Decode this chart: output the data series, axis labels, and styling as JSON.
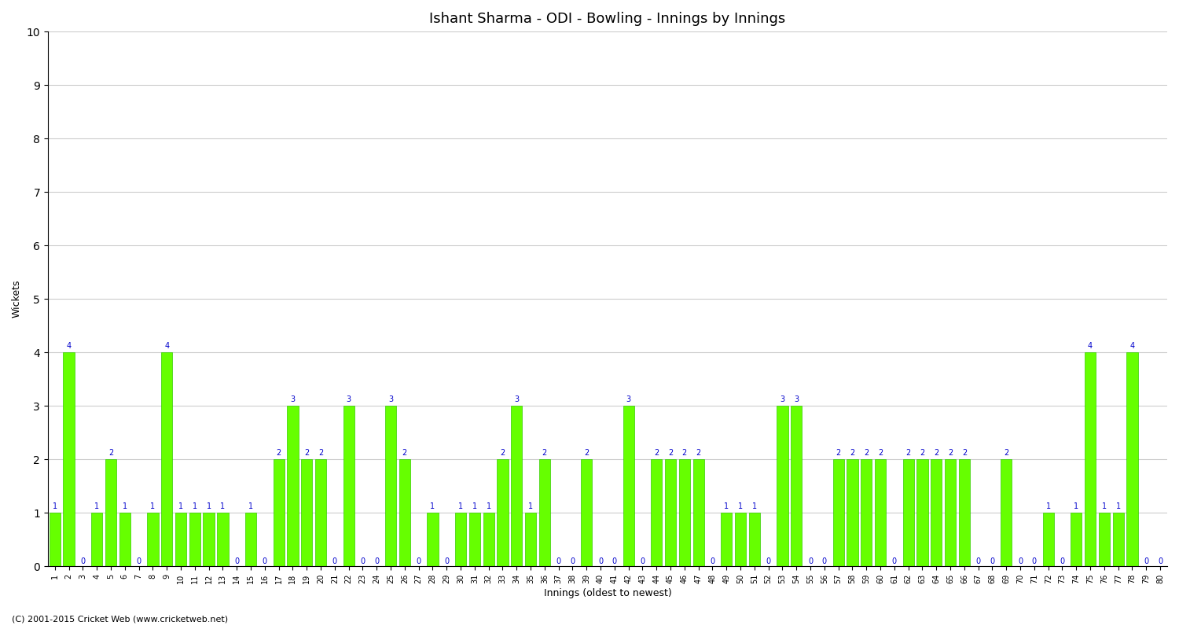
{
  "title": "Ishant Sharma - ODI - Bowling - Innings by Innings",
  "xlabel": "Innings (oldest to newest)",
  "ylabel": "Wickets",
  "bar_color": "#66ff00",
  "bar_edge_color": "#33cc00",
  "label_color": "#0000cc",
  "background_color": "#ffffff",
  "grid_color": "#cccccc",
  "ylim": [
    0,
    10
  ],
  "yticks": [
    0,
    1,
    2,
    3,
    4,
    5,
    6,
    7,
    8,
    9,
    10
  ],
  "footnote": "(C) 2001-2015 Cricket Web (www.cricketweb.net)",
  "wickets": [
    1,
    4,
    0,
    1,
    2,
    1,
    0,
    1,
    4,
    1,
    1,
    1,
    1,
    0,
    1,
    0,
    2,
    3,
    2,
    2,
    0,
    3,
    0,
    0,
    3,
    2,
    0,
    1,
    0,
    1,
    1,
    1,
    2,
    3,
    1,
    2,
    0,
    0,
    2,
    0,
    0,
    3,
    0,
    2,
    2,
    2,
    2,
    0,
    1,
    1,
    1,
    0,
    3,
    3,
    0,
    0,
    2,
    2,
    2,
    2,
    0,
    2,
    2,
    2,
    2,
    2,
    0,
    0,
    2,
    0,
    0,
    1,
    0,
    1,
    4,
    1,
    1,
    4,
    0,
    0
  ],
  "innings_labels": [
    "1",
    "2",
    "3",
    "4",
    "5",
    "6",
    "7",
    "8",
    "9",
    "10",
    "11",
    "12",
    "13",
    "14",
    "15",
    "16",
    "17",
    "18",
    "19",
    "20",
    "21",
    "22",
    "23",
    "24",
    "25",
    "26",
    "27",
    "28",
    "29",
    "30",
    "31",
    "32",
    "33",
    "34",
    "35",
    "36",
    "37",
    "38",
    "39",
    "40",
    "41",
    "42",
    "43",
    "44",
    "45",
    "46",
    "47",
    "48",
    "49",
    "50",
    "51",
    "52",
    "53",
    "54",
    "55",
    "56",
    "57",
    "58",
    "59",
    "60",
    "61",
    "62",
    "63",
    "64",
    "65",
    "66",
    "67",
    "68",
    "69",
    "70",
    "71",
    "72",
    "73",
    "74",
    "75",
    "76",
    "77",
    "78",
    "79",
    "80"
  ]
}
